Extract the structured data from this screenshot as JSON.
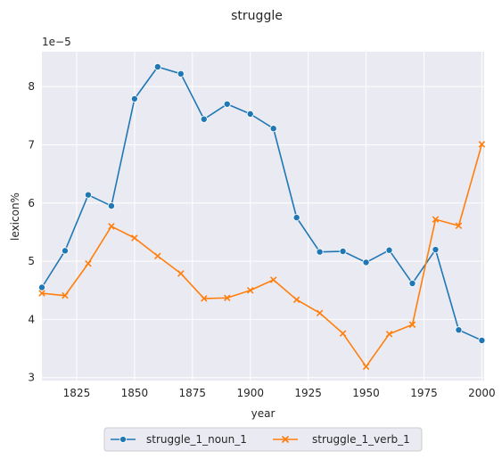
{
  "chart_data": {
    "type": "line",
    "title": "struggle",
    "xlabel": "year",
    "ylabel": "lexicon%",
    "y_scale_label": "1e−5",
    "xlim": [
      1810,
      2001
    ],
    "ylim": [
      2.95,
      8.6
    ],
    "x_ticks": [
      1825,
      1850,
      1875,
      1900,
      1925,
      1950,
      1975,
      2000
    ],
    "y_ticks": [
      3,
      4,
      5,
      6,
      7,
      8
    ],
    "grid": true,
    "legend_placement": "bottom-center",
    "x": [
      1810,
      1820,
      1830,
      1840,
      1850,
      1860,
      1870,
      1880,
      1890,
      1900,
      1910,
      1920,
      1930,
      1940,
      1950,
      1960,
      1970,
      1980,
      1990,
      2000
    ],
    "series": [
      {
        "name": "struggle_1_noun_1",
        "color": "#1f77b4",
        "marker": "circle",
        "values": [
          4.55,
          5.18,
          6.14,
          5.95,
          7.79,
          8.34,
          8.22,
          7.44,
          7.7,
          7.53,
          7.28,
          5.75,
          5.16,
          5.17,
          4.98,
          5.19,
          4.62,
          5.2,
          3.82,
          3.64
        ]
      },
      {
        "name": "struggle_1_verb_1",
        "color": "#ff7f0e",
        "marker": "x",
        "values": [
          4.45,
          4.41,
          4.96,
          5.6,
          5.4,
          5.09,
          4.79,
          4.36,
          4.37,
          4.5,
          4.68,
          4.34,
          4.11,
          3.76,
          3.19,
          3.75,
          3.91,
          5.72,
          5.61,
          7.01
        ]
      }
    ]
  },
  "colors": {
    "plot_background": "#eaeaf2",
    "grid": "#ffffff",
    "text": "#262626"
  }
}
